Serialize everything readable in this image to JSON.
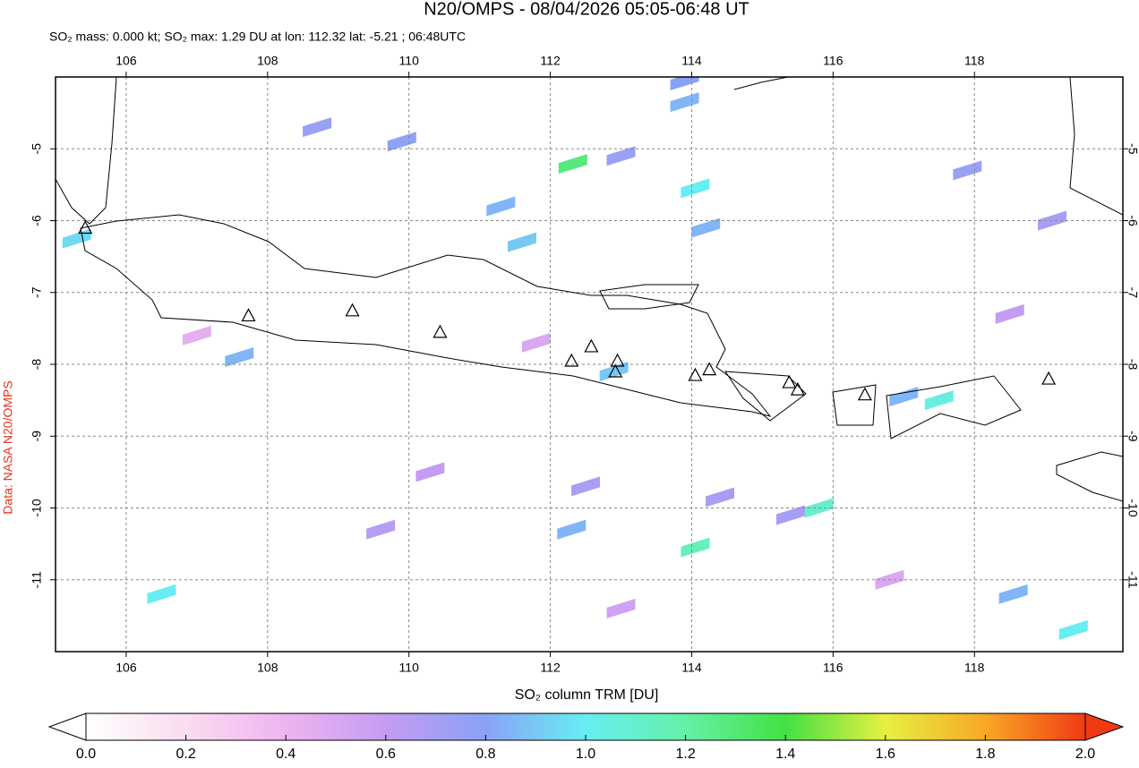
{
  "chart_data": {
    "type": "map",
    "title": "N20/OMPS - 08/04/2026 05:05-06:48 UT",
    "subtitle": "SO₂ mass: 0.000 kt; SO₂ max: 1.29 DU at lon: 112.32 lat: -5.21 ; 06:48UTC",
    "source": "Data: NASA N20/OMPS",
    "xlim": [
      105,
      120.1
    ],
    "ylim": [
      -12,
      -4
    ],
    "xticks": [
      106,
      108,
      110,
      112,
      114,
      116,
      118
    ],
    "yticks": [
      -5,
      -6,
      -7,
      -8,
      -9,
      -10,
      -11
    ],
    "grid": true,
    "pixels": {
      "lon": [
        112.32,
        114.05,
        114.2,
        113.0,
        113.9,
        113.9,
        108.7,
        109.9,
        111.6,
        111.3,
        112.9,
        117.5,
        117.0,
        115.8,
        114.05,
        119.4,
        118.55,
        105.3,
        106.5,
        107.6,
        112.3,
        112.5,
        114.4,
        115.4,
        117.9,
        119.1,
        118.5,
        110.3,
        109.6,
        111.8,
        107.0,
        113.0,
        116.8
      ],
      "lat": [
        -5.21,
        -5.55,
        -6.1,
        -5.1,
        -4.05,
        -4.35,
        -4.7,
        -4.9,
        -6.3,
        -5.8,
        -8.1,
        -8.5,
        -8.45,
        -10.0,
        -10.55,
        -11.7,
        -11.2,
        -6.25,
        -11.2,
        -7.9,
        -10.3,
        -9.7,
        -9.85,
        -10.1,
        -5.3,
        -6.0,
        -7.3,
        -9.5,
        -10.3,
        -7.7,
        -7.6,
        -11.4,
        -11.0
      ],
      "values": [
        1.29,
        1.0,
        0.85,
        0.75,
        0.8,
        0.85,
        0.75,
        0.78,
        0.9,
        0.85,
        0.9,
        1.05,
        0.85,
        1.1,
        1.15,
        1.0,
        0.85,
        0.95,
        1.0,
        0.85,
        0.85,
        0.7,
        0.7,
        0.7,
        0.75,
        0.7,
        0.6,
        0.6,
        0.65,
        0.5,
        0.45,
        0.55,
        0.5
      ]
    },
    "volcanoes": {
      "lon": [
        105.42,
        107.73,
        109.2,
        110.44,
        112.3,
        112.58,
        112.95,
        112.92,
        114.05,
        114.25,
        115.38,
        115.5,
        116.45,
        119.05
      ],
      "lat": [
        -6.1,
        -7.32,
        -7.25,
        -7.55,
        -7.95,
        -7.75,
        -7.95,
        -8.1,
        -8.15,
        -8.07,
        -8.25,
        -8.35,
        -8.42,
        -8.2
      ]
    },
    "colorbar": {
      "label": "SO₂ column TRM [DU]",
      "ticks": [
        {
          "value": 0,
          "label": "0.0"
        },
        0.2,
        0.4,
        0.6,
        0.8,
        {
          "value": 1,
          "label": "1.0"
        },
        1.2,
        1.4,
        1.6,
        1.8,
        {
          "value": 2,
          "label": "2.0"
        }
      ],
      "colors": [
        "#ffffff",
        "#fbdcf0",
        "#eeb4f0",
        "#c49cf2",
        "#8aa2f6",
        "#66eef2",
        "#66f0a8",
        "#44e044",
        "#e6f042",
        "#f8a826",
        "#f03a14"
      ]
    }
  }
}
